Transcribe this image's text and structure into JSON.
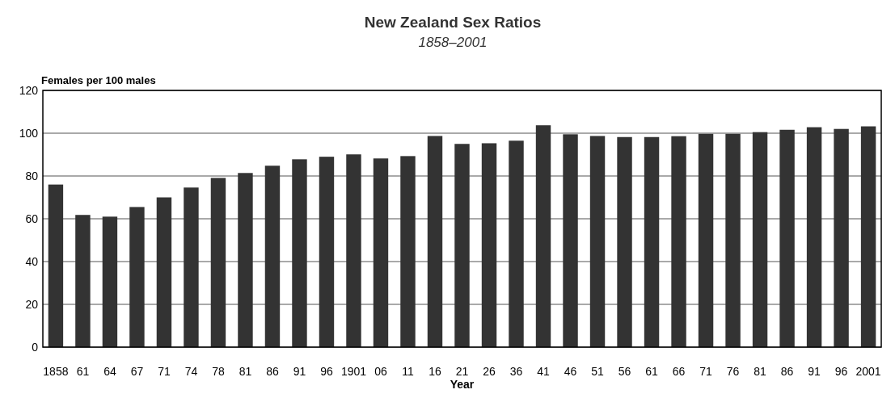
{
  "chart_data": {
    "type": "bar",
    "title": "New Zealand Sex Ratios",
    "subtitle": "1858–2001",
    "xlabel": "Year",
    "ylabel": "Females per 100 males",
    "categories": [
      "1858",
      "61",
      "64",
      "67",
      "71",
      "74",
      "78",
      "81",
      "86",
      "91",
      "96",
      "1901",
      "06",
      "11",
      "16",
      "21",
      "26",
      "36",
      "41",
      "46",
      "51",
      "56",
      "61",
      "66",
      "71",
      "76",
      "81",
      "86",
      "91",
      "96",
      "2001"
    ],
    "values": [
      76,
      61.8,
      61,
      65.5,
      70,
      74.6,
      79.1,
      81.4,
      84.8,
      87.8,
      89,
      90.1,
      88.2,
      89.3,
      98.7,
      95,
      95.3,
      96.5,
      103.7,
      99.5,
      98.7,
      98.2,
      98.2,
      98.6,
      99.7,
      99.7,
      100.5,
      101.6,
      102.8,
      102,
      103.2
    ],
    "color": "#333333",
    "ylim": [
      0,
      120
    ],
    "yticks": [
      0,
      20,
      40,
      60,
      80,
      100,
      120
    ],
    "grid": "y"
  }
}
